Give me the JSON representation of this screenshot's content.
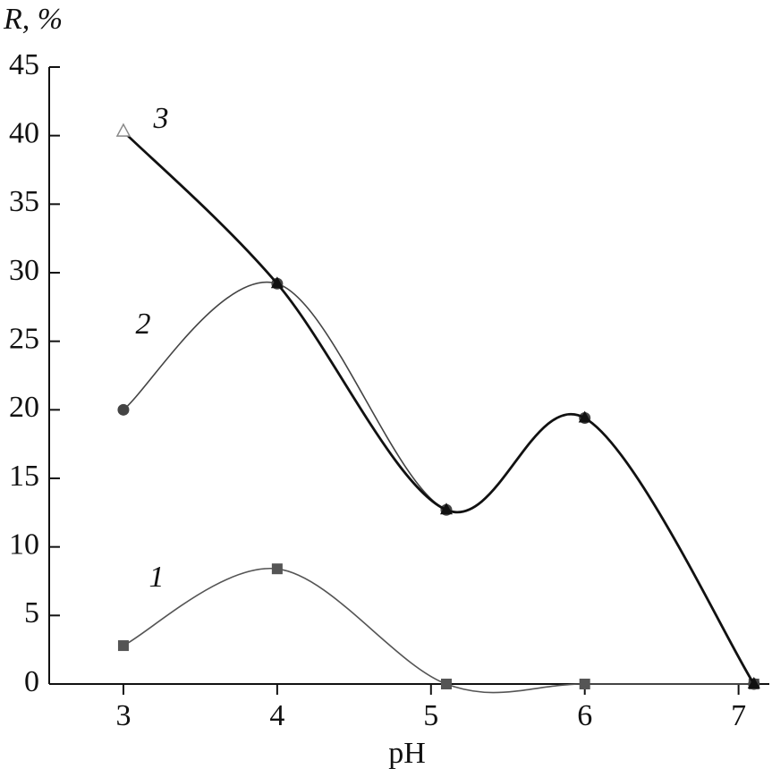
{
  "chart_data": {
    "type": "line",
    "y_label": "R, %",
    "x_label": "pH",
    "x": [
      3,
      4,
      5.1,
      6,
      7.1
    ],
    "series": [
      {
        "name": "1",
        "color": "#555555",
        "marker": "square",
        "values": [
          2.8,
          8.4,
          0,
          0,
          0
        ]
      },
      {
        "name": "2",
        "color": "#444444",
        "marker": "circle",
        "values": [
          20,
          29.2,
          12.7,
          19.4,
          0
        ]
      },
      {
        "name": "3",
        "color": "#111111",
        "marker": "triangle",
        "values": [
          40.3,
          29.2,
          12.7,
          19.4,
          0
        ]
      }
    ],
    "xlim": [
      2.5,
      7.2
    ],
    "xticks": [
      3,
      4,
      5,
      6,
      7
    ],
    "ylim": [
      0,
      45
    ],
    "yticks": [
      0,
      5,
      10,
      15,
      20,
      25,
      30,
      35,
      40,
      45
    ],
    "grid": false
  }
}
